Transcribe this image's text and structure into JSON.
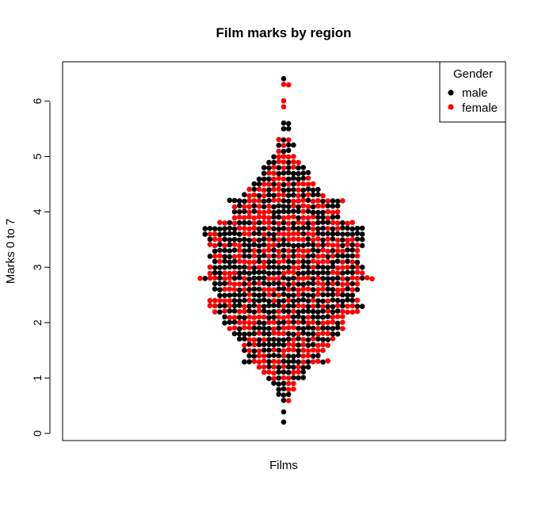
{
  "chart_data": {
    "type": "scatter",
    "subtype": "beeswarm",
    "title": "Film marks by region",
    "xlabel": "Films",
    "ylabel": "Marks 0 to 7",
    "ylim": [
      0,
      6.5
    ],
    "yticks": [
      "0",
      "1",
      "2",
      "3",
      "4",
      "5",
      "6"
    ],
    "legend": {
      "title": "Gender",
      "placement": "top-right",
      "entries": [
        {
          "label": "male",
          "color": "#000000"
        },
        {
          "label": "female",
          "color": "#ff0000"
        }
      ]
    },
    "series": [
      {
        "name": "male",
        "color": "#000000"
      },
      {
        "name": "female",
        "color": "#ff0000"
      }
    ],
    "distribution": {
      "bins": [
        {
          "y": 0.2,
          "n": 1
        },
        {
          "y": 0.4,
          "n": 1
        },
        {
          "y": 0.6,
          "n": 2
        },
        {
          "y": 0.7,
          "n": 3
        },
        {
          "y": 0.8,
          "n": 4
        },
        {
          "y": 0.9,
          "n": 5
        },
        {
          "y": 1.0,
          "n": 8
        },
        {
          "y": 1.1,
          "n": 9
        },
        {
          "y": 1.2,
          "n": 11
        },
        {
          "y": 1.3,
          "n": 18
        },
        {
          "y": 1.4,
          "n": 15
        },
        {
          "y": 1.5,
          "n": 17
        },
        {
          "y": 1.6,
          "n": 18
        },
        {
          "y": 1.7,
          "n": 20
        },
        {
          "y": 1.8,
          "n": 22
        },
        {
          "y": 1.9,
          "n": 24
        },
        {
          "y": 2.0,
          "n": 25
        },
        {
          "y": 2.1,
          "n": 25
        },
        {
          "y": 2.2,
          "n": 30
        },
        {
          "y": 2.3,
          "n": 32
        },
        {
          "y": 2.4,
          "n": 31
        },
        {
          "y": 2.5,
          "n": 28
        },
        {
          "y": 2.6,
          "n": 30
        },
        {
          "y": 2.7,
          "n": 30
        },
        {
          "y": 2.8,
          "n": 36
        },
        {
          "y": 2.9,
          "n": 32
        },
        {
          "y": 3.0,
          "n": 32
        },
        {
          "y": 3.1,
          "n": 30
        },
        {
          "y": 3.2,
          "n": 31
        },
        {
          "y": 3.3,
          "n": 30
        },
        {
          "y": 3.4,
          "n": 32
        },
        {
          "y": 3.5,
          "n": 32
        },
        {
          "y": 3.6,
          "n": 33
        },
        {
          "y": 3.7,
          "n": 33
        },
        {
          "y": 3.8,
          "n": 28
        },
        {
          "y": 3.9,
          "n": 22
        },
        {
          "y": 4.0,
          "n": 22
        },
        {
          "y": 4.1,
          "n": 22
        },
        {
          "y": 4.2,
          "n": 24
        },
        {
          "y": 4.3,
          "n": 17
        },
        {
          "y": 4.4,
          "n": 15
        },
        {
          "y": 4.5,
          "n": 13
        },
        {
          "y": 4.6,
          "n": 11
        },
        {
          "y": 4.7,
          "n": 10
        },
        {
          "y": 4.8,
          "n": 9
        },
        {
          "y": 4.9,
          "n": 7
        },
        {
          "y": 5.0,
          "n": 5
        },
        {
          "y": 5.1,
          "n": 3
        },
        {
          "y": 5.2,
          "n": 4
        },
        {
          "y": 5.3,
          "n": 3
        },
        {
          "y": 5.5,
          "n": 2
        },
        {
          "y": 5.6,
          "n": 2
        },
        {
          "y": 5.9,
          "n": 1
        },
        {
          "y": 6.0,
          "n": 1
        },
        {
          "y": 6.3,
          "n": 2
        },
        {
          "y": 6.4,
          "n": 1
        }
      ],
      "female_share": 0.45
    }
  }
}
